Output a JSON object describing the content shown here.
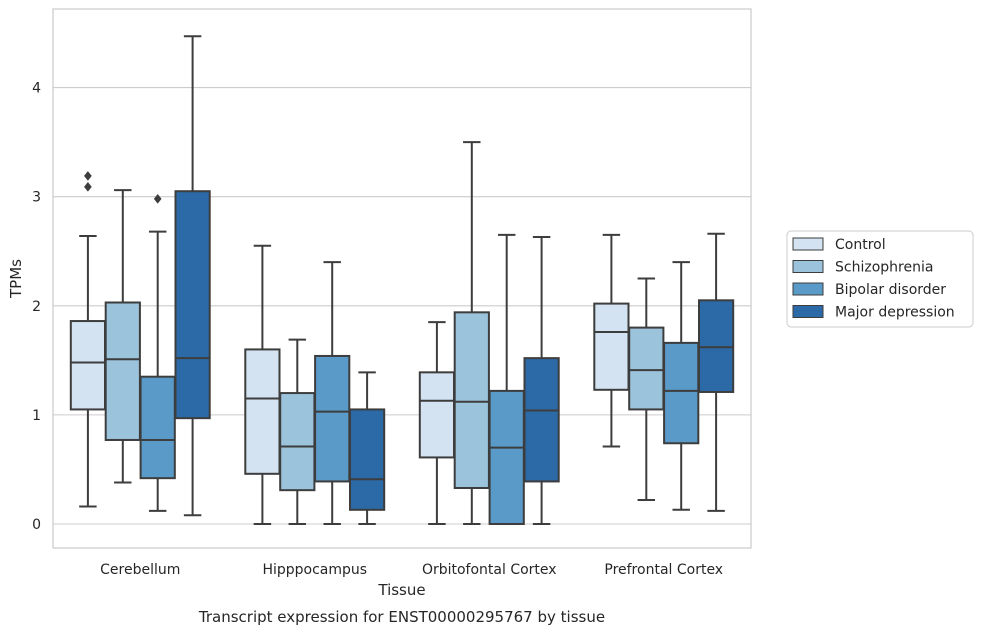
{
  "chart_data": {
    "type": "box",
    "caption": "Transcript expression for ENST00000295767 by tissue",
    "xlabel": "Tissue",
    "ylabel": "TPMs",
    "ylim": [
      -0.22,
      4.72
    ],
    "yticks": [
      "0",
      "1",
      "2",
      "3",
      "4"
    ],
    "grid": true,
    "legend_position": "right",
    "categories": [
      "Cerebellum",
      "Hipppocampus",
      "Orbitofontal Cortex",
      "Prefrontal Cortex"
    ],
    "series": [
      {
        "name": "Control",
        "color": "#d3e3f1",
        "boxes": [
          {
            "min": 0.16,
            "q1": 1.05,
            "median": 1.48,
            "q3": 1.86,
            "max": 2.64,
            "outliers": [
              3.09,
              3.19
            ]
          },
          {
            "min": 0.0,
            "q1": 0.46,
            "median": 1.15,
            "q3": 1.6,
            "max": 2.55,
            "outliers": []
          },
          {
            "min": 0.0,
            "q1": 0.61,
            "median": 1.13,
            "q3": 1.39,
            "max": 1.85,
            "outliers": []
          },
          {
            "min": 0.71,
            "q1": 1.23,
            "median": 1.76,
            "q3": 2.02,
            "max": 2.65,
            "outliers": []
          }
        ]
      },
      {
        "name": "Schizophrenia",
        "color": "#9cc3dc",
        "boxes": [
          {
            "min": 0.38,
            "q1": 0.77,
            "median": 1.51,
            "q3": 2.03,
            "max": 3.06,
            "outliers": []
          },
          {
            "min": 0.0,
            "q1": 0.31,
            "median": 0.71,
            "q3": 1.2,
            "max": 1.69,
            "outliers": []
          },
          {
            "min": 0.0,
            "q1": 0.33,
            "median": 1.12,
            "q3": 1.94,
            "max": 3.5,
            "outliers": []
          },
          {
            "min": 0.22,
            "q1": 1.05,
            "median": 1.41,
            "q3": 1.8,
            "max": 2.25,
            "outliers": []
          }
        ]
      },
      {
        "name": "Bipolar disorder",
        "color": "#5a9ac8",
        "boxes": [
          {
            "min": 0.12,
            "q1": 0.42,
            "median": 0.77,
            "q3": 1.35,
            "max": 2.68,
            "outliers": [
              2.98
            ]
          },
          {
            "min": 0.0,
            "q1": 0.39,
            "median": 1.03,
            "q3": 1.54,
            "max": 2.4,
            "outliers": []
          },
          {
            "min": 0.0,
            "q1": 0.0,
            "median": 0.7,
            "q3": 1.22,
            "max": 2.65,
            "outliers": []
          },
          {
            "min": 0.13,
            "q1": 0.74,
            "median": 1.22,
            "q3": 1.66,
            "max": 2.4,
            "outliers": []
          }
        ]
      },
      {
        "name": "Major depression",
        "color": "#2b6aa7",
        "boxes": [
          {
            "min": 0.08,
            "q1": 0.97,
            "median": 1.52,
            "q3": 3.05,
            "max": 4.47,
            "outliers": []
          },
          {
            "min": 0.0,
            "q1": 0.13,
            "median": 0.41,
            "q3": 1.05,
            "max": 1.39,
            "outliers": []
          },
          {
            "min": 0.0,
            "q1": 0.39,
            "median": 1.04,
            "q3": 1.52,
            "max": 2.63,
            "outliers": []
          },
          {
            "min": 0.12,
            "q1": 1.21,
            "median": 1.62,
            "q3": 2.05,
            "max": 2.66,
            "outliers": []
          }
        ]
      }
    ]
  }
}
